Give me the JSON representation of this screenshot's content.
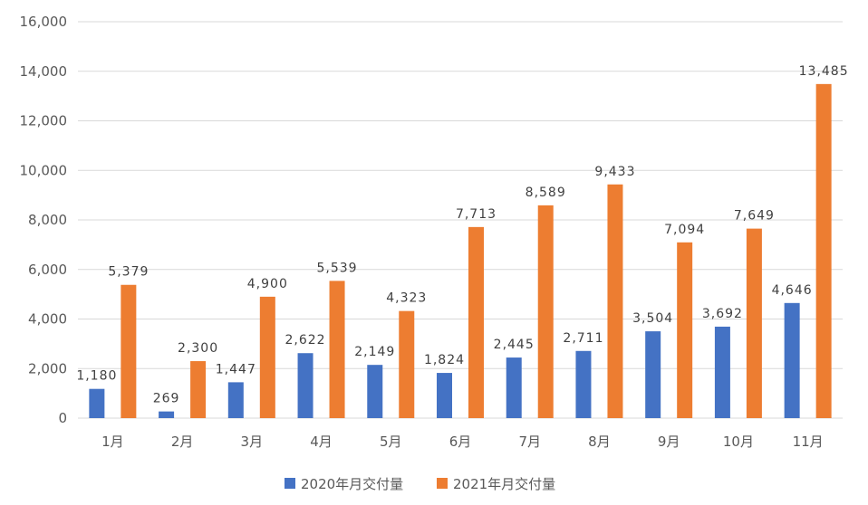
{
  "chart_data": {
    "type": "bar",
    "categories": [
      "1月",
      "2月",
      "3月",
      "4月",
      "5月",
      "6月",
      "7月",
      "8月",
      "9月",
      "10月",
      "11月"
    ],
    "series": [
      {
        "name": "2020年月交付量",
        "color": "#4472c4",
        "values": [
          1180,
          269,
          1447,
          2622,
          2149,
          1824,
          2445,
          2711,
          3504,
          3692,
          4646
        ],
        "labels": [
          "1,180",
          "269",
          "1,447",
          "2,622",
          "2,149",
          "1,824",
          "2,445",
          "2,711",
          "3,504",
          "3,692",
          "4,646"
        ]
      },
      {
        "name": "2021年月交付量",
        "color": "#ed7d31",
        "values": [
          5379,
          2300,
          4900,
          5539,
          4323,
          7713,
          8589,
          9433,
          7094,
          7649,
          13485
        ],
        "labels": [
          "5,379",
          "2,300",
          "4,900",
          "5,539",
          "4,323",
          "7,713",
          "8,589",
          "9,433",
          "7,094",
          "7,649",
          "13,485"
        ]
      }
    ],
    "yticks": [
      "0",
      "2,000",
      "4,000",
      "6,000",
      "8,000",
      "10,000",
      "12,000",
      "14,000",
      "16,000"
    ],
    "ylim": [
      0,
      16000
    ],
    "grid": true,
    "legend": "bottom-center",
    "title": "",
    "xlabel": "",
    "ylabel": ""
  }
}
